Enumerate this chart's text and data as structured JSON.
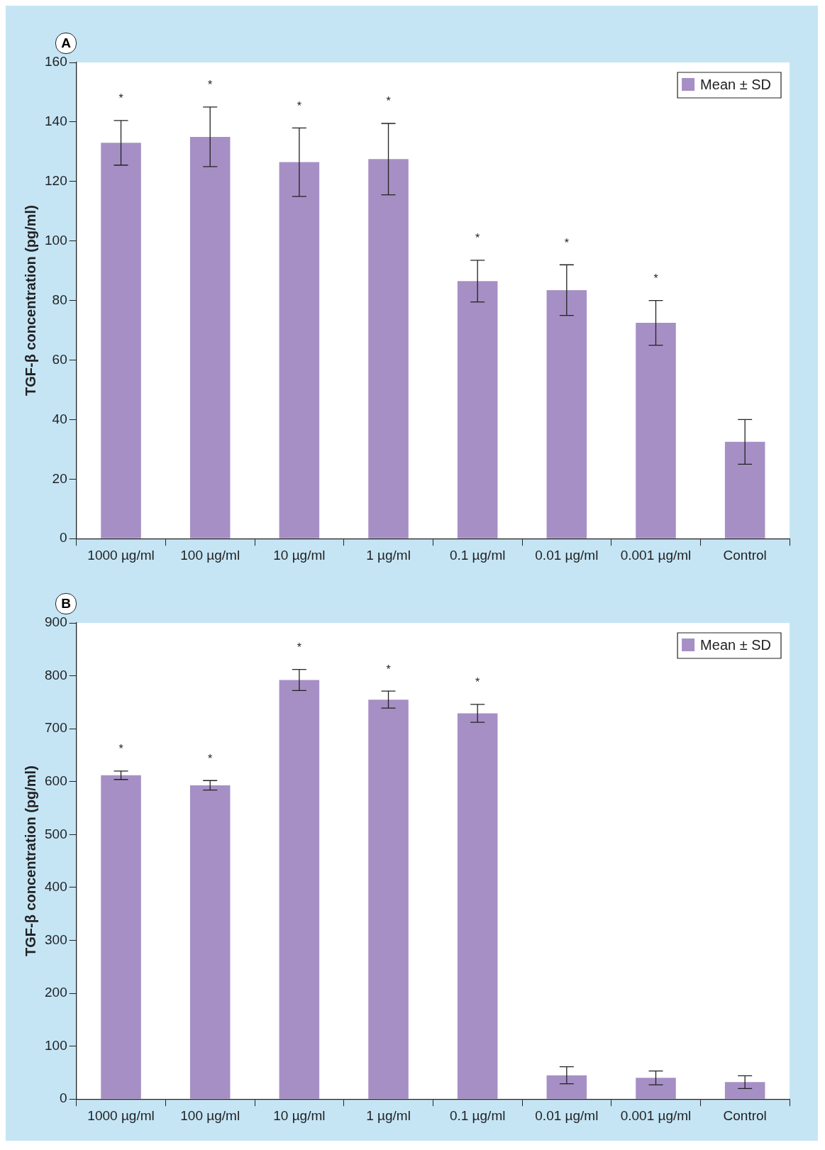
{
  "chart_data": [
    {
      "type": "bar",
      "title": "A",
      "ylabel": "TGF-β concentration (pg/ml)",
      "categories": [
        "1000 µg/ml",
        "100 µg/ml",
        "10 µg/ml",
        "1 µg/ml",
        "0.1 µg/ml",
        "0.01 µg/ml",
        "0.001 µg/ml",
        "Control"
      ],
      "series": [
        {
          "name": "Mean ± SD",
          "color": "#a68fc5",
          "values": [
            133,
            135,
            126.5,
            127.5,
            86.5,
            83.5,
            72.5,
            32.5
          ],
          "errors": [
            7.5,
            10,
            11.5,
            12,
            7,
            8.5,
            7.5,
            7.5
          ]
        }
      ],
      "ylim": [
        0,
        160
      ],
      "yticks": [
        0,
        20,
        40,
        60,
        80,
        100,
        120,
        140,
        160
      ],
      "grid": false,
      "legend": "top right",
      "annotations": [
        "*",
        "*",
        "*",
        "*",
        "*",
        "*",
        "*"
      ]
    },
    {
      "type": "bar",
      "title": "B",
      "ylabel": "TGF-β concentration (pg/ml)",
      "categories": [
        "1000 µg/ml",
        "100 µg/ml",
        "10 µg/ml",
        "1 µg/ml",
        "0.1 µg/ml",
        "0.01 µg/ml",
        "0.001 µg/ml",
        "Control"
      ],
      "series": [
        {
          "name": "Mean ± SD",
          "color": "#a68fc5",
          "values": [
            612,
            593,
            792,
            755,
            729,
            45,
            40,
            32
          ],
          "errors": [
            8,
            9,
            20,
            16,
            17,
            16,
            13,
            12
          ]
        }
      ],
      "ylim": [
        0,
        900
      ],
      "yticks": [
        0,
        100,
        200,
        300,
        400,
        500,
        600,
        700,
        800,
        900
      ],
      "grid": false,
      "legend": "top right",
      "annotations": [
        "*",
        "*",
        "*",
        "*",
        "*"
      ]
    }
  ]
}
